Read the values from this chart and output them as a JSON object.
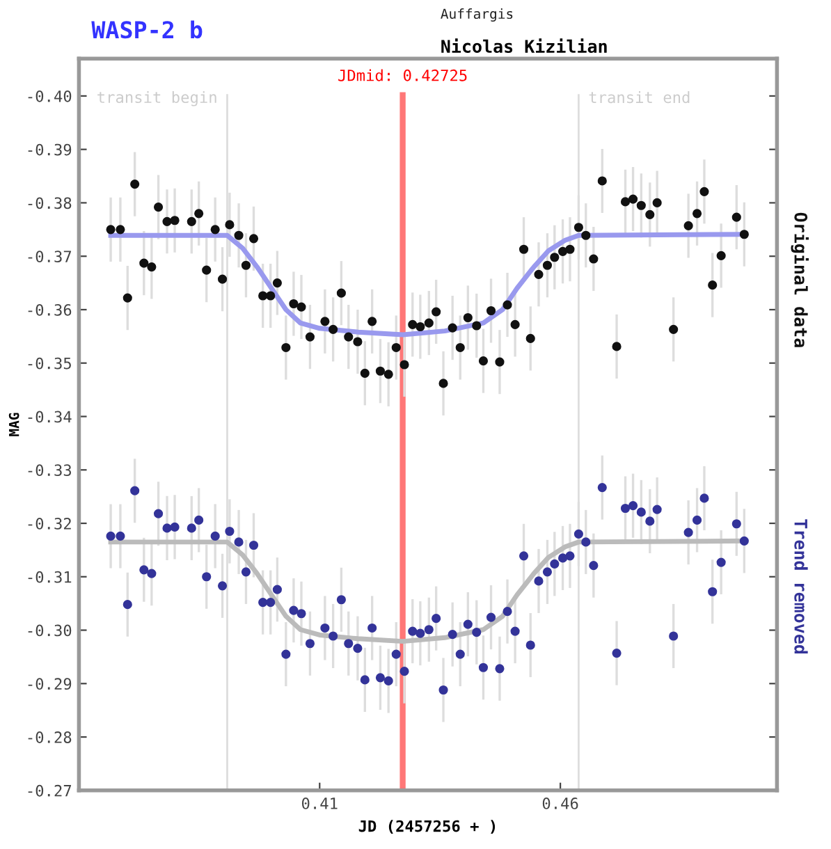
{
  "chart_data": {
    "type": "scatter",
    "title": "WASP-2 b",
    "subtitle": "Auffargis",
    "annotations": [
      "Nicolas Kizilian"
    ],
    "xlabel": "JD (2457256 + )",
    "ylabel": "MAG",
    "xlim": [
      0.36,
      0.505
    ],
    "xticks": [
      0.41,
      0.46
    ],
    "ylim": [
      -0.27,
      -0.407
    ],
    "yticks": [
      {
        "value": -0.4,
        "label": "-0.40"
      },
      {
        "value": -0.39,
        "label": "-0.39"
      },
      {
        "value": -0.38,
        "label": "-0.38"
      },
      {
        "value": -0.37,
        "label": "-0.37"
      },
      {
        "value": -0.36,
        "label": "-0.36"
      },
      {
        "value": -0.35,
        "label": "-0.35"
      },
      {
        "value": -0.34,
        "label": "-0.34"
      },
      {
        "value": -0.33,
        "label": "-0.33"
      },
      {
        "value": -0.32,
        "label": "-0.32"
      },
      {
        "value": -0.31,
        "label": "-0.31"
      },
      {
        "value": -0.3,
        "label": "-0.30"
      },
      {
        "value": -0.29,
        "label": "-0.29"
      },
      {
        "value": -0.28,
        "label": "-0.28"
      },
      {
        "value": -0.27,
        "label": "-0.27"
      }
    ],
    "grid": false,
    "ref_lines": [
      {
        "axis": "x",
        "value": 0.3908,
        "label": "transit begin",
        "color": "#dddddd"
      },
      {
        "axis": "x",
        "value": 0.42725,
        "label": "JDmid: 0.42725",
        "color": "#ff7777"
      },
      {
        "axis": "x",
        "value": 0.4638,
        "label": "transit end",
        "color": "#dddddd"
      }
    ],
    "x": [
      0.3666,
      0.3686,
      0.3701,
      0.3716,
      0.3735,
      0.3751,
      0.3765,
      0.3783,
      0.3799,
      0.3834,
      0.3849,
      0.3865,
      0.3883,
      0.3898,
      0.3913,
      0.3932,
      0.3947,
      0.3963,
      0.3982,
      0.3998,
      0.4012,
      0.403,
      0.4046,
      0.4062,
      0.408,
      0.4111,
      0.4128,
      0.4145,
      0.416,
      0.4179,
      0.4194,
      0.4209,
      0.4226,
      0.4243,
      0.4259,
      0.4276,
      0.4293,
      0.4309,
      0.4327,
      0.4342,
      0.4357,
      0.4376,
      0.4392,
      0.4408,
      0.4426,
      0.444,
      0.4456,
      0.4474,
      0.449,
      0.4506,
      0.4524,
      0.4538,
      0.4555,
      0.4573,
      0.4588,
      0.4605,
      0.462,
      0.4638,
      0.4653,
      0.4669,
      0.4687,
      0.4717,
      0.4735,
      0.4751,
      0.4768,
      0.4786,
      0.4801,
      0.4835,
      0.4866,
      0.4884,
      0.4899,
      0.4916,
      0.4934,
      0.4966,
      0.4982
    ],
    "series": [
      {
        "name": "Original data",
        "marker": "circle",
        "color": "#111111",
        "values": [
          -0.375,
          -0.375,
          -0.3622,
          -0.3835,
          -0.3687,
          -0.368,
          -0.3792,
          -0.3765,
          -0.3767,
          -0.3765,
          -0.378,
          -0.3674,
          -0.375,
          -0.3657,
          -0.3759,
          -0.3739,
          -0.3683,
          -0.3733,
          -0.3626,
          -0.3626,
          -0.365,
          -0.3529,
          -0.3611,
          -0.3605,
          -0.3549,
          -0.3578,
          -0.3563,
          -0.3631,
          -0.3549,
          -0.354,
          -0.3481,
          -0.3578,
          -0.3485,
          -0.3479,
          -0.3529,
          -0.3497,
          -0.3572,
          -0.3568,
          -0.3575,
          -0.3596,
          -0.3462,
          -0.3566,
          -0.3529,
          -0.3585,
          -0.357,
          -0.3504,
          -0.3598,
          -0.3502,
          -0.3609,
          -0.3572,
          -0.3713,
          -0.3546,
          -0.3666,
          -0.3683,
          -0.3698,
          -0.3709,
          -0.3713,
          -0.3754,
          -0.3739,
          -0.3695,
          -0.3841,
          -0.3531,
          -0.3802,
          -0.3807,
          -0.3795,
          -0.3778,
          -0.38,
          -0.3563,
          -0.3757,
          -0.378,
          -0.3821,
          -0.3646,
          -0.3701,
          -0.3773,
          -0.3741
        ],
        "errors": [
          0.006,
          0.006,
          0.006,
          0.006,
          0.006,
          0.006,
          0.006,
          0.006,
          0.006,
          0.006,
          0.006,
          0.006,
          0.006,
          0.006,
          0.006,
          0.006,
          0.006,
          0.006,
          0.006,
          0.006,
          0.006,
          0.006,
          0.006,
          0.006,
          0.006,
          0.006,
          0.006,
          0.006,
          0.006,
          0.006,
          0.006,
          0.006,
          0.006,
          0.006,
          0.006,
          0.006,
          0.006,
          0.006,
          0.006,
          0.006,
          0.006,
          0.006,
          0.006,
          0.006,
          0.006,
          0.006,
          0.006,
          0.006,
          0.006,
          0.006,
          0.006,
          0.006,
          0.006,
          0.006,
          0.006,
          0.006,
          0.006,
          0.006,
          0.006,
          0.006,
          0.006,
          0.006,
          0.006,
          0.006,
          0.006,
          0.006,
          0.006,
          0.006,
          0.006,
          0.006,
          0.006,
          0.006,
          0.006,
          0.006,
          0.006
        ]
      },
      {
        "name": "Trend removed",
        "marker": "circle",
        "color": "#333399",
        "values": [
          -0.3176,
          -0.3176,
          -0.3048,
          -0.3261,
          -0.3113,
          -0.3106,
          -0.3218,
          -0.3191,
          -0.3193,
          -0.3191,
          -0.3206,
          -0.31,
          -0.3176,
          -0.3083,
          -0.3185,
          -0.3165,
          -0.3109,
          -0.3159,
          -0.3052,
          -0.3052,
          -0.3076,
          -0.2955,
          -0.3037,
          -0.3031,
          -0.2975,
          -0.3004,
          -0.2989,
          -0.3057,
          -0.2975,
          -0.2966,
          -0.2907,
          -0.3004,
          -0.2911,
          -0.2905,
          -0.2955,
          -0.2923,
          -0.2998,
          -0.2994,
          -0.3001,
          -0.3022,
          -0.2888,
          -0.2992,
          -0.2955,
          -0.3011,
          -0.2996,
          -0.293,
          -0.3024,
          -0.2928,
          -0.3035,
          -0.2998,
          -0.3139,
          -0.2972,
          -0.3092,
          -0.3109,
          -0.3124,
          -0.3135,
          -0.3139,
          -0.318,
          -0.3165,
          -0.3121,
          -0.3267,
          -0.2957,
          -0.3228,
          -0.3233,
          -0.3221,
          -0.3204,
          -0.3226,
          -0.2989,
          -0.3183,
          -0.3206,
          -0.3247,
          -0.3072,
          -0.3127,
          -0.3199,
          -0.3167
        ],
        "errors": [
          0.006,
          0.006,
          0.006,
          0.006,
          0.006,
          0.006,
          0.006,
          0.006,
          0.006,
          0.006,
          0.006,
          0.006,
          0.006,
          0.006,
          0.006,
          0.006,
          0.006,
          0.006,
          0.006,
          0.006,
          0.006,
          0.006,
          0.006,
          0.006,
          0.006,
          0.006,
          0.006,
          0.006,
          0.006,
          0.006,
          0.006,
          0.006,
          0.006,
          0.006,
          0.006,
          0.006,
          0.006,
          0.006,
          0.006,
          0.006,
          0.006,
          0.006,
          0.006,
          0.006,
          0.006,
          0.006,
          0.006,
          0.006,
          0.006,
          0.006,
          0.006,
          0.006,
          0.006,
          0.006,
          0.006,
          0.006,
          0.006,
          0.006,
          0.006,
          0.006,
          0.006,
          0.006,
          0.006,
          0.006,
          0.006,
          0.006,
          0.006,
          0.006,
          0.006,
          0.006,
          0.006,
          0.006,
          0.006,
          0.006,
          0.006
        ]
      },
      {
        "type": "line",
        "color": "#9999ee",
        "x": [
          0.3666,
          0.3908,
          0.394,
          0.397,
          0.4,
          0.403,
          0.406,
          0.41,
          0.418,
          0.4273,
          0.436,
          0.444,
          0.448,
          0.451,
          0.4545,
          0.4575,
          0.461,
          0.4638,
          0.4982
        ],
        "values": [
          -0.3739,
          -0.3739,
          -0.3715,
          -0.368,
          -0.364,
          -0.36,
          -0.3575,
          -0.3565,
          -0.3558,
          -0.3553,
          -0.356,
          -0.3575,
          -0.36,
          -0.364,
          -0.368,
          -0.371,
          -0.373,
          -0.3739,
          -0.3741
        ]
      },
      {
        "type": "line",
        "color": "#bbbbbb",
        "x": [
          0.3666,
          0.3908,
          0.394,
          0.397,
          0.4,
          0.403,
          0.406,
          0.41,
          0.418,
          0.4273,
          0.436,
          0.444,
          0.448,
          0.451,
          0.4545,
          0.4575,
          0.461,
          0.4638,
          0.4982
        ],
        "values": [
          -0.3165,
          -0.3165,
          -0.3141,
          -0.3106,
          -0.3066,
          -0.3026,
          -0.3001,
          -0.2991,
          -0.2984,
          -0.2979,
          -0.2986,
          -0.3001,
          -0.3026,
          -0.3066,
          -0.3106,
          -0.3136,
          -0.3156,
          -0.3165,
          -0.3167
        ]
      }
    ]
  }
}
